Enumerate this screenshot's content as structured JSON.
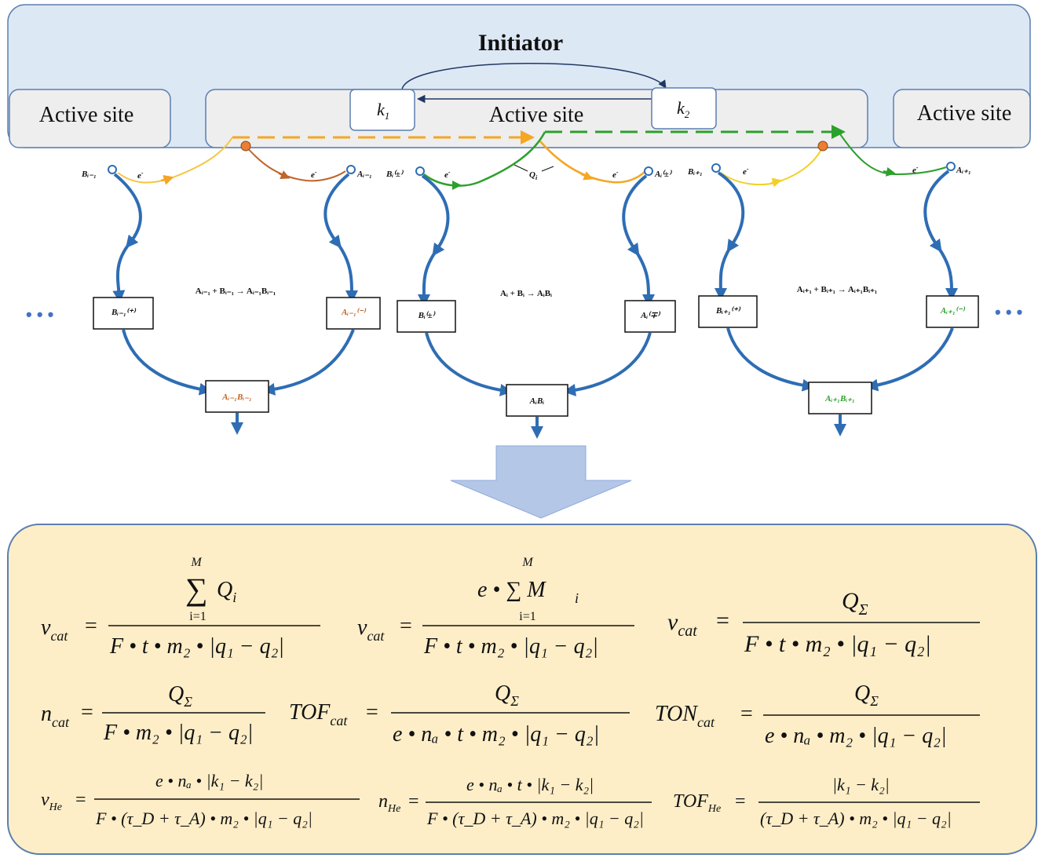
{
  "initiator": {
    "title": "Initiator"
  },
  "sites": {
    "left": "Active site",
    "center": "Active site",
    "right": "Active site"
  },
  "rates": {
    "k1": "k",
    "k1_sub": "1",
    "k2": "k",
    "k2_sub": "2"
  },
  "charge": {
    "q_label": "Q",
    "q_sub": "i",
    "electron": "e",
    "electron_sup": "-"
  },
  "left_unit": {
    "reaction": "A",
    "reaction_text": "Aᵢ₋₁ + Bᵢ₋₁ → Aᵢ₋₁Bᵢ₋₁",
    "b_node": "Bᵢ₋₁",
    "a_node": "Aᵢ₋₁",
    "b_box": "Bᵢ₋₁⁽⁺⁾",
    "a_box": "Aᵢ₋₁⁽⁻⁾",
    "product": "Aᵢ₋₁Bᵢ₋₁"
  },
  "center_unit": {
    "reaction_text": "Aᵢ + Bᵢ → AᵢBᵢ",
    "b_node": "Bᵢ⁽±⁾",
    "a_node": "Aᵢ⁽±⁾",
    "b_box": "Bᵢ⁽±⁾",
    "a_box": "Aᵢ⁽∓⁾",
    "product": "AᵢBᵢ"
  },
  "right_unit": {
    "reaction_text": "Aᵢ₊₁ + Bᵢ₊₁ → Aᵢ₊₁Bᵢ₊₁",
    "b_node": "Bᵢ₊₁",
    "a_node": "Aᵢ₊₁",
    "b_box": "Bᵢ₊₁⁽⁺⁾",
    "a_box": "Aᵢ₊₁⁽⁻⁾",
    "product": "Aᵢ₊₁Bᵢ₊₁"
  },
  "ellipsis": {
    "left": "• • •",
    "right": "• • •"
  },
  "colors": {
    "initiator_fill": "#dde8f5",
    "site_fill": "#eeeeee",
    "arrow_blue": "#2e6db4",
    "orange": "#f5a623",
    "brown": "#c0652a",
    "green": "#2ca02c",
    "yellow": "#f2d024",
    "panel_fill": "#fdeec8",
    "big_arrow": "#b4c7e7"
  },
  "equations": {
    "row1": [
      {
        "lhs": "v",
        "lhs_sub": "cat",
        "num": "∑ Q",
        "num_sub": "i",
        "sum_top": "M",
        "sum_bot": "i=1",
        "den": "F • t • m₂ • |q₁ − q₂|"
      },
      {
        "lhs": "v",
        "lhs_sub": "cat",
        "num": "e • ∑ M",
        "num_sub": "i",
        "sum_top": "M",
        "sum_bot": "i=1",
        "den": "F • t • m₂ • |q₁ − q₂|"
      },
      {
        "lhs": "v",
        "lhs_sub": "cat",
        "num": "Q",
        "num_sub": "Σ",
        "den": "F • t • m₂ • |q₁ − q₂|"
      }
    ],
    "row2": [
      {
        "lhs": "n",
        "lhs_sub": "cat",
        "num": "Q",
        "num_sub": "Σ",
        "den": "F • m₂ • |q₁ − q₂|"
      },
      {
        "lhs": "TOF",
        "lhs_sub": "cat",
        "num": "Q",
        "num_sub": "Σ",
        "den": "e • nₐ • t • m₂ • |q₁ − q₂|"
      },
      {
        "lhs": "TON",
        "lhs_sub": "cat",
        "num": "Q",
        "num_sub": "Σ",
        "den": "e • nₐ • m₂ • |q₁ − q₂|"
      }
    ],
    "row3": [
      {
        "lhs": "v",
        "lhs_sub": "He",
        "num": "e • nₐ • |k₁ − k₂|",
        "den": "F • (τ_D + τ_A) • m₂ • |q₁ − q₂|"
      },
      {
        "lhs": "n",
        "lhs_sub": "He",
        "num": "e • nₐ • t • |k₁ − k₂|",
        "den": "F • (τ_D + τ_A) • m₂ • |q₁ − q₂|"
      },
      {
        "lhs": "TOF",
        "lhs_sub": "He",
        "num": "|k₁ − k₂|",
        "den": "(τ_D + τ_A) • m₂ • |q₁ − q₂|"
      }
    ]
  }
}
